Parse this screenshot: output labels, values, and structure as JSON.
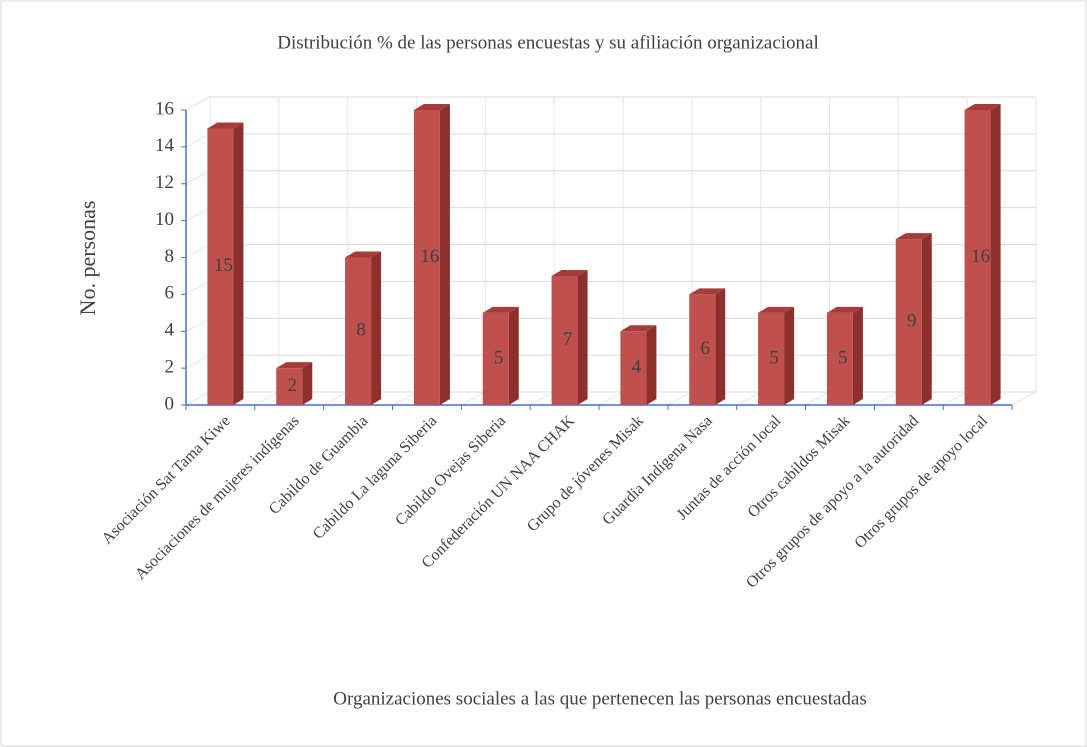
{
  "chart_data": {
    "type": "bar",
    "title": "Distribución % de las personas encuestas y su afiliación organizacional",
    "x_label": "Organizaciones sociales a las que pertenecen las personas encuestadas",
    "y_label": "No. personas",
    "categories": [
      "Asociación Sat Tama Kiwe",
      "Asociaciones de mujeres indígenas",
      "Cabildo de Guambia",
      "Cabildo La laguna Siberia",
      "Cabildo Ovejas Siberia",
      "Confederación UN NAA CHAK",
      "Grupo de jóvenes Misak",
      "Guardia Indígena Nasa",
      "Juntas de acción local",
      "Otros cabildos Misak",
      "Otros grupos de apoyo a la autoridad",
      "Otros grupos de apoyo local"
    ],
    "values": [
      15,
      2,
      8,
      16,
      5,
      7,
      4,
      6,
      5,
      5,
      9,
      16
    ],
    "color": "#c0504d",
    "ylim": [
      0,
      16
    ],
    "yticks": [
      0,
      2,
      4,
      6,
      8,
      10,
      12,
      14,
      16
    ],
    "grid": true
  }
}
